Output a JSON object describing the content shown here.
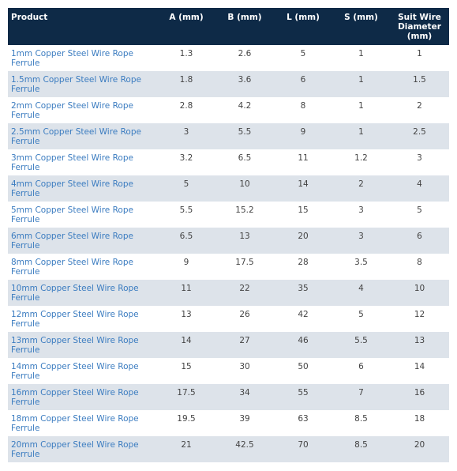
{
  "table": {
    "headers": [
      "Product",
      "A (mm)",
      "B (mm)",
      "L (mm)",
      "S (mm)",
      "Suit Wire Diameter (mm)"
    ],
    "rows": [
      [
        "1mm Copper Steel Wire Rope Ferrule",
        "1.3",
        "2.6",
        "5",
        "1",
        "1"
      ],
      [
        "1.5mm Copper Steel Wire Rope Ferrule",
        "1.8",
        "3.6",
        "6",
        "1",
        "1.5"
      ],
      [
        "2mm Copper Steel Wire Rope Ferrule",
        "2.8",
        "4.2",
        "8",
        "1",
        "2"
      ],
      [
        "2.5mm Copper Steel Wire Rope Ferrule",
        "3",
        "5.5",
        "9",
        "1",
        "2.5"
      ],
      [
        "3mm Copper Steel Wire Rope Ferrule",
        "3.2",
        "6.5",
        "11",
        "1.2",
        "3"
      ],
      [
        "4mm Copper Steel Wire Rope Ferrule",
        "5",
        "10",
        "14",
        "2",
        "4"
      ],
      [
        "5mm Copper Steel Wire Rope Ferrule",
        "5.5",
        "15.2",
        "15",
        "3",
        "5"
      ],
      [
        "6mm Copper Steel Wire Rope Ferrule",
        "6.5",
        "13",
        "20",
        "3",
        "6"
      ],
      [
        "8mm Copper Steel Wire Rope Ferrule",
        "9",
        "17.5",
        "28",
        "3.5",
        "8"
      ],
      [
        "10mm Copper Steel Wire Rope Ferrule",
        "11",
        "22",
        "35",
        "4",
        "10"
      ],
      [
        "12mm Copper Steel Wire Rope Ferrule",
        "13",
        "26",
        "42",
        "5",
        "12"
      ],
      [
        "13mm Copper Steel Wire Rope Ferrule",
        "14",
        "27",
        "46",
        "5.5",
        "13"
      ],
      [
        "14mm Copper Steel Wire Rope Ferrule",
        "15",
        "30",
        "50",
        "6",
        "14"
      ],
      [
        "16mm Copper Steel Wire Rope Ferrule",
        "17.5",
        "34",
        "55",
        "7",
        "16"
      ],
      [
        "18mm Copper Steel Wire Rope Ferrule",
        "19.5",
        "39",
        "63",
        "8.5",
        "18"
      ],
      [
        "20mm Copper Steel Wire Rope Ferrule",
        "21",
        "42.5",
        "70",
        "8.5",
        "20"
      ]
    ]
  }
}
